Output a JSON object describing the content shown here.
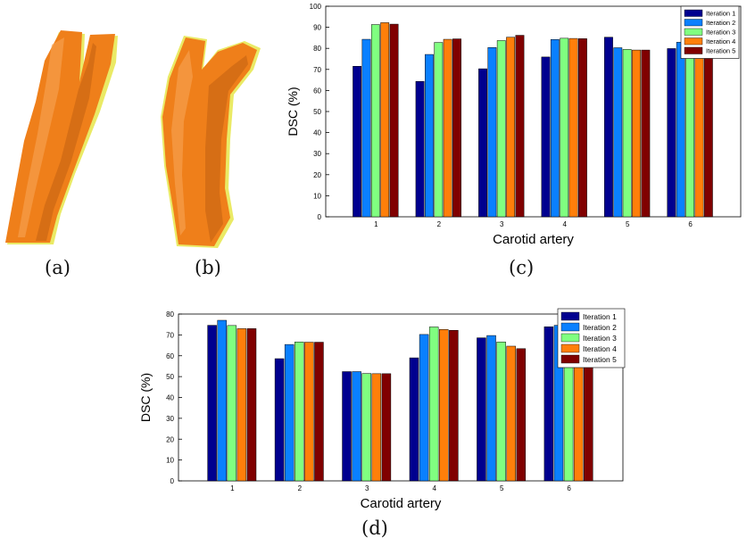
{
  "panels": {
    "a": "(a)",
    "b": "(b)",
    "c": "(c)",
    "d": "(d)"
  },
  "colors": {
    "iteration1": "#00008f",
    "iteration2": "#0a80ff",
    "iteration3": "#80ff80",
    "iteration4": "#ff7f0a",
    "iteration5": "#800000",
    "vessel": "#ef7f1a",
    "vessel_shadow": "#b85a10",
    "vessel_outline": "#e6e64a"
  },
  "chart_data": [
    {
      "type": "bar",
      "panel": "c",
      "xlabel": "Carotid artery",
      "ylabel": "DSC (%)",
      "ylim": [
        0,
        100
      ],
      "yticks": [
        0,
        10,
        20,
        30,
        40,
        50,
        60,
        70,
        80,
        90,
        100
      ],
      "categories": [
        "1",
        "2",
        "3",
        "4",
        "5",
        "6"
      ],
      "grid": false,
      "legend_position": "top-right",
      "series": [
        {
          "name": "Iteration 1",
          "values": [
            71.5,
            64.3,
            70.3,
            75.9,
            85.3,
            79.9
          ]
        },
        {
          "name": "Iteration 2",
          "values": [
            84.3,
            77.1,
            80.4,
            84.2,
            80.3,
            82.9
          ]
        },
        {
          "name": "Iteration 3",
          "values": [
            91.3,
            82.8,
            83.7,
            84.8,
            79.5,
            79.9
          ]
        },
        {
          "name": "Iteration 4",
          "values": [
            92.2,
            84.3,
            85.3,
            84.7,
            79.2,
            78.3
          ]
        },
        {
          "name": "Iteration 5",
          "values": [
            91.5,
            84.5,
            86.2,
            84.6,
            79.2,
            78.2
          ]
        }
      ]
    },
    {
      "type": "bar",
      "panel": "d",
      "xlabel": "Carotid artery",
      "ylabel": "DSC (%)",
      "ylim": [
        0,
        80
      ],
      "yticks": [
        0,
        10,
        20,
        30,
        40,
        50,
        60,
        70,
        80
      ],
      "categories": [
        "1",
        "2",
        "3",
        "4",
        "5",
        "6"
      ],
      "grid": false,
      "legend_position": "top-right",
      "series": [
        {
          "name": "Iteration 1",
          "values": [
            74.6,
            58.6,
            52.4,
            59.0,
            68.6,
            73.9
          ]
        },
        {
          "name": "Iteration 2",
          "values": [
            77.0,
            65.4,
            52.4,
            70.2,
            69.7,
            74.6
          ]
        },
        {
          "name": "Iteration 3",
          "values": [
            74.5,
            66.6,
            51.5,
            73.8,
            66.6,
            73.1
          ]
        },
        {
          "name": "Iteration 4",
          "values": [
            73.0,
            66.5,
            51.4,
            72.6,
            64.6,
            72.1
          ]
        },
        {
          "name": "Iteration 5",
          "values": [
            73.0,
            66.5,
            51.4,
            72.2,
            63.4,
            71.0
          ]
        }
      ]
    }
  ]
}
